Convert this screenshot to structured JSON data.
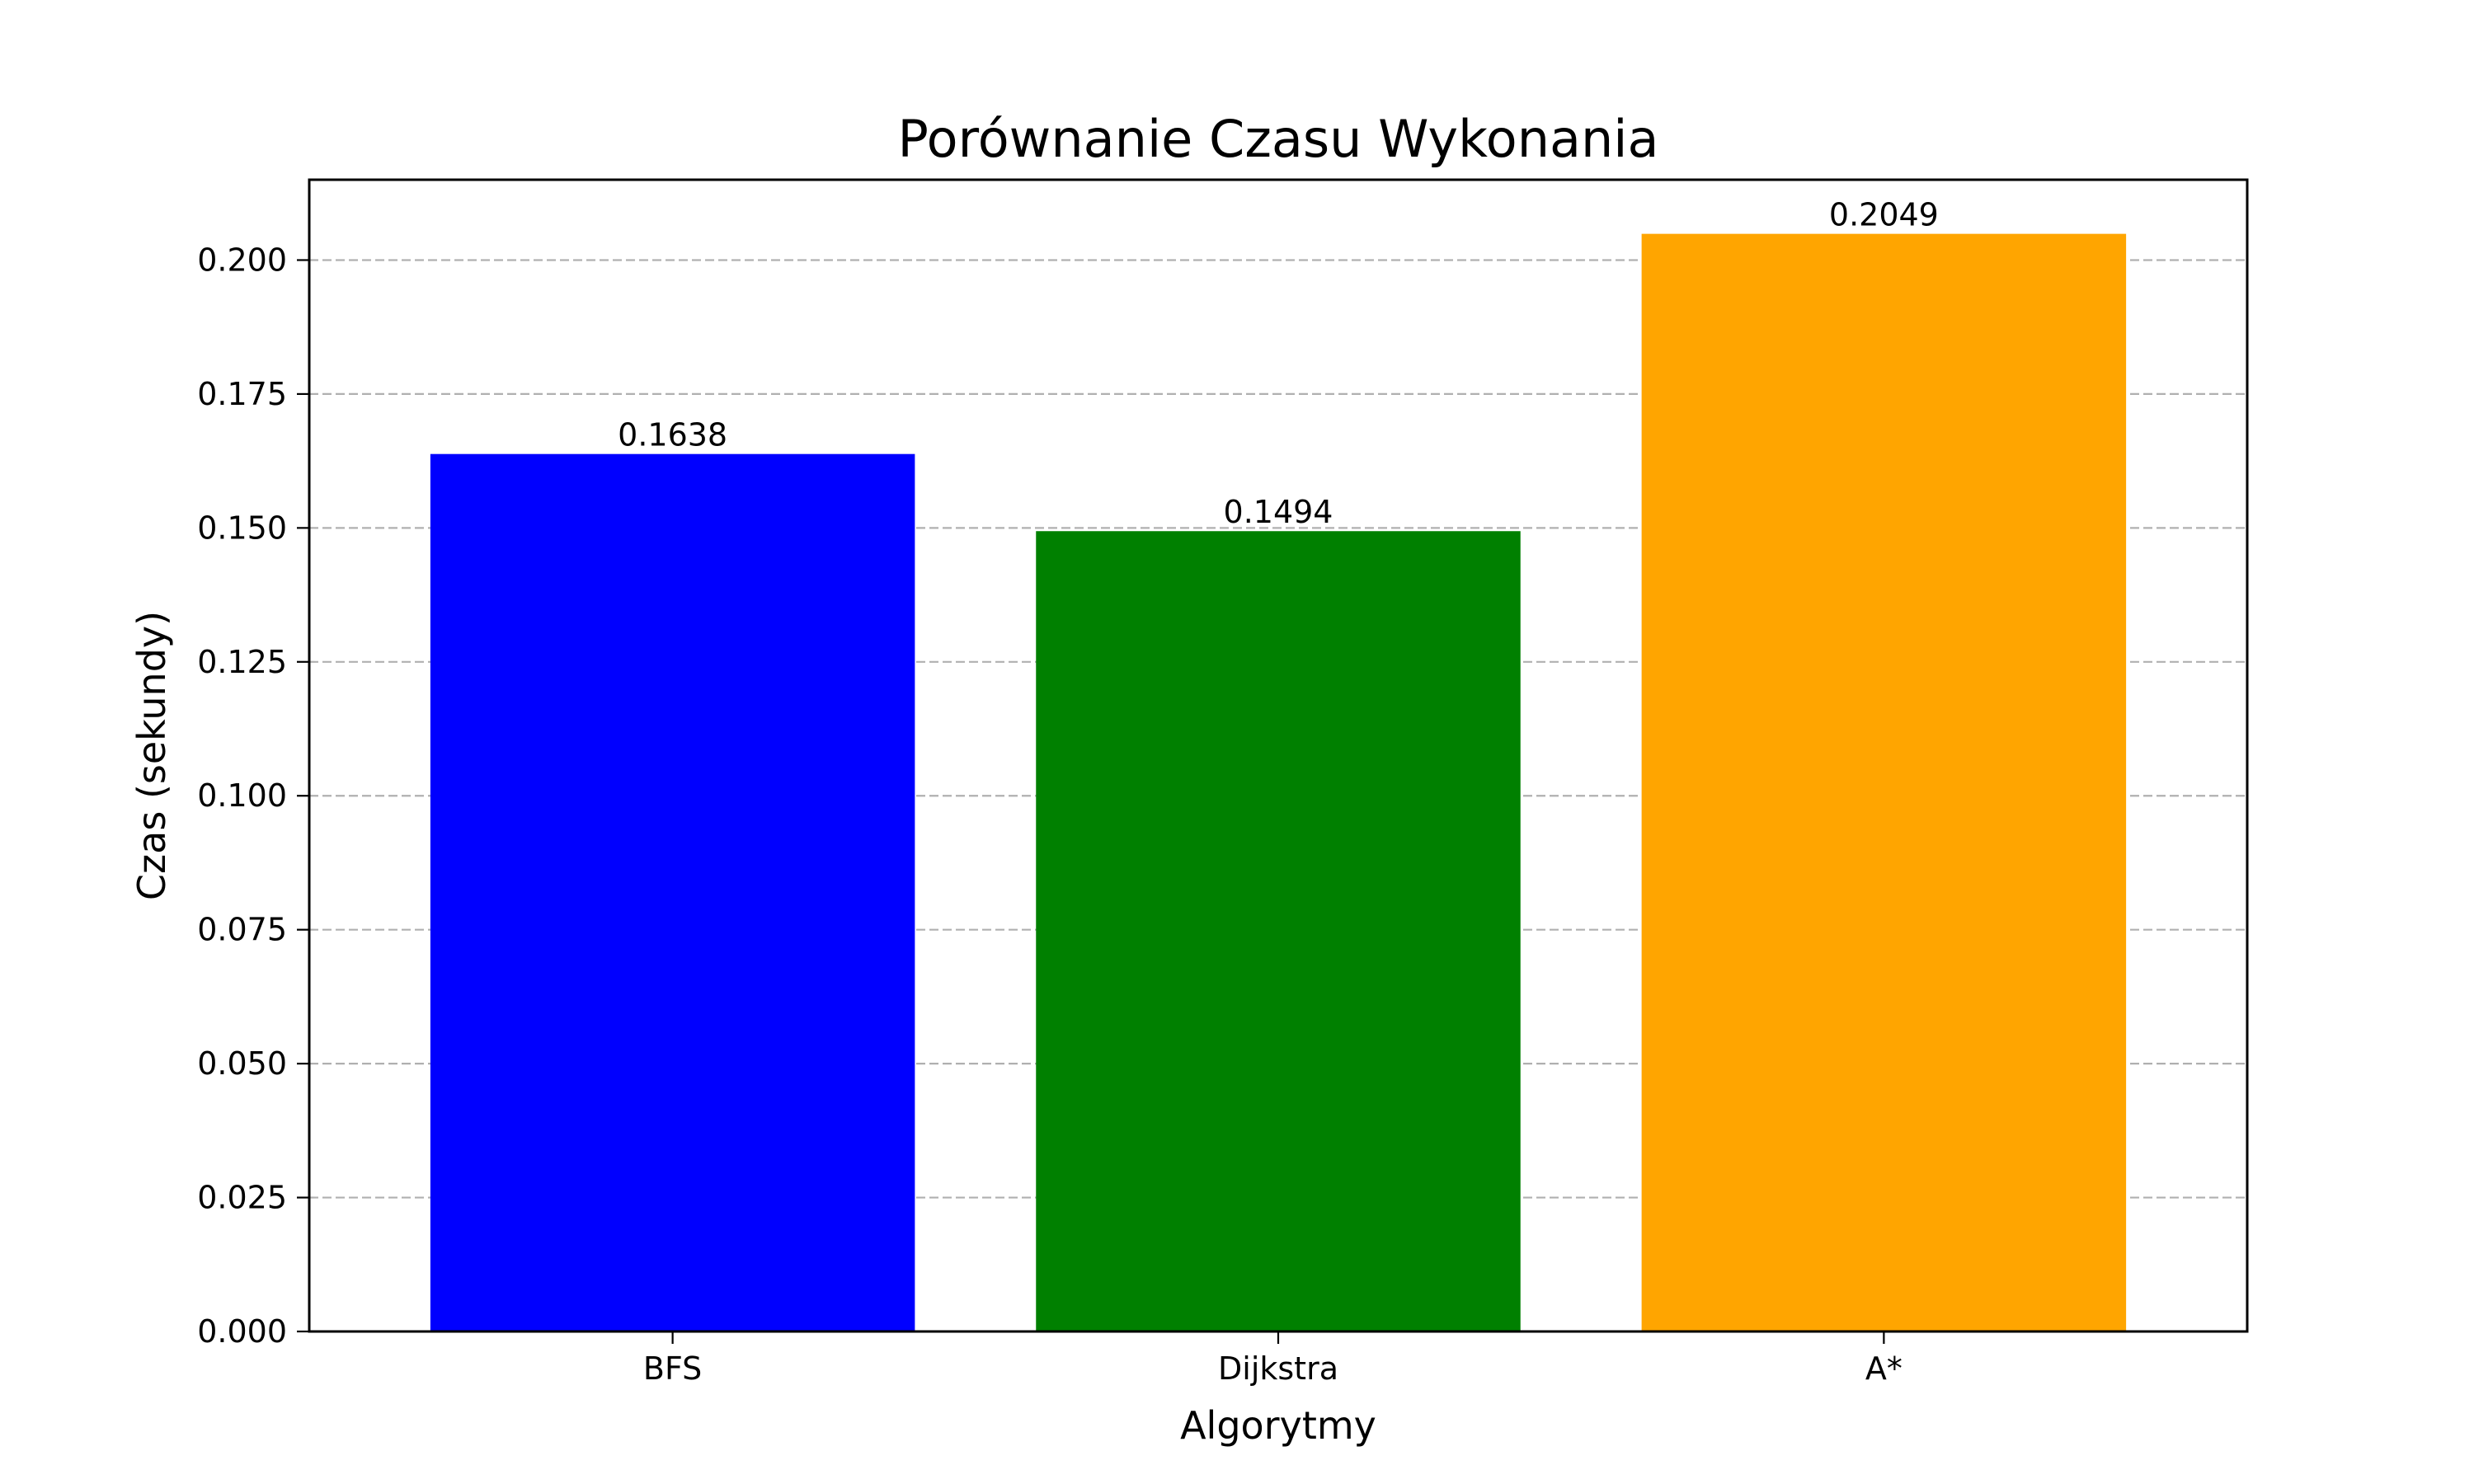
{
  "chart_data": {
    "type": "bar",
    "title": "Porównanie Czasu Wykonania",
    "xlabel": "Algorytmy",
    "ylabel": "Czas (sekundy)",
    "categories": [
      "BFS",
      "Dijkstra",
      "A*"
    ],
    "values": [
      0.1638,
      0.1494,
      0.2049
    ],
    "value_labels": [
      "0.1638",
      "0.1494",
      "0.2049"
    ],
    "colors": [
      "#0000ff",
      "#008000",
      "#ffa500"
    ],
    "ylim": [
      0,
      0.215
    ],
    "yticks": [
      0,
      0.025,
      0.05,
      0.075,
      0.1,
      0.125,
      0.15,
      0.175,
      0.2
    ],
    "ytick_labels": [
      "0.000",
      "0.025",
      "0.050",
      "0.075",
      "0.100",
      "0.125",
      "0.150",
      "0.175",
      "0.200"
    ],
    "grid": "y-dashed",
    "legend": "none"
  }
}
